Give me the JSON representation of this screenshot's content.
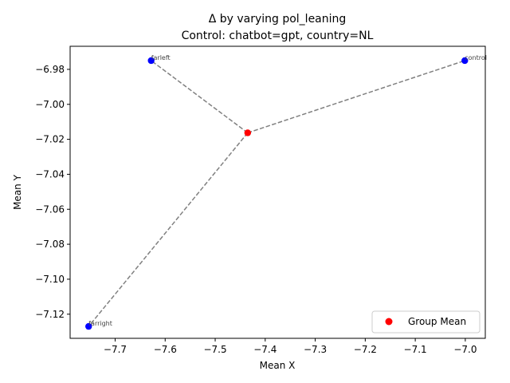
{
  "chart_data": {
    "type": "scatter",
    "title": "Δ by varying pol_leaning",
    "subtitle": "Control: chatbot=gpt, country=NL",
    "xlabel": "Mean X",
    "ylabel": "Mean Y",
    "xlim": [
      -7.79,
      -6.96
    ],
    "ylim": [
      -7.1338,
      -6.9668
    ],
    "xticks": [
      -7.7,
      -7.6,
      -7.5,
      -7.4,
      -7.3,
      -7.2,
      -7.1,
      -7.0
    ],
    "xtick_labels": [
      "−7.7",
      "−7.6",
      "−7.5",
      "−7.4",
      "−7.3",
      "−7.2",
      "−7.1",
      "−7.0"
    ],
    "yticks": [
      -6.98,
      -7.0,
      -7.02,
      -7.04,
      -7.06,
      -7.08,
      -7.1,
      -7.12
    ],
    "ytick_labels": [
      "−6.98",
      "−7.00",
      "−7.02",
      "−7.04",
      "−7.06",
      "−7.08",
      "−7.10",
      "−7.12"
    ],
    "points": [
      {
        "label": "farleft",
        "x": -7.628,
        "y": -6.975,
        "color": "#0000ff"
      },
      {
        "label": "control",
        "x": -7.001,
        "y": -6.975,
        "color": "#0000ff"
      },
      {
        "label": "farright",
        "x": -7.753,
        "y": -7.127,
        "color": "#0000ff"
      }
    ],
    "group_mean": {
      "name": "Group Mean",
      "x": -7.435,
      "y": -7.0163,
      "color": "#ff0000"
    },
    "connector_color": "#808080",
    "legend_position": "lower-right",
    "grid": false
  }
}
